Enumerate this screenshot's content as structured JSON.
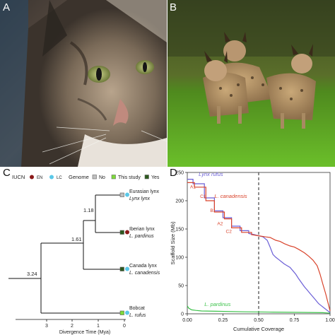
{
  "figure": {
    "panels": [
      "A",
      "B",
      "C",
      "D"
    ]
  },
  "panel_c": {
    "legend": {
      "iucn_label": "IUCN",
      "en_label": "EN",
      "lc_label": "LC",
      "genome_label": "Genome",
      "no_label": "No",
      "this_study_label": "This study",
      "yes_label": "Yes"
    },
    "colors": {
      "en": "#8b1a1a",
      "lc": "#5bc8e8",
      "no": "#bfbfbf",
      "this_study": "#7ddb3a",
      "yes": "#2d5a1e"
    },
    "taxa": [
      {
        "common": "Eurasian lynx",
        "latin": "Lynx lynx",
        "iucn": "lc",
        "genome": "no"
      },
      {
        "common": "Iberian lynx",
        "latin": "L. pardinus",
        "iucn": "en",
        "genome": "yes"
      },
      {
        "common": "Canada lynx",
        "latin": "L. canadensis",
        "iucn": "lc",
        "genome": "yes"
      },
      {
        "common": "Bobcat",
        "latin": "L. rufus",
        "iucn": "lc",
        "genome": "this_study"
      }
    ],
    "node_labels": {
      "root": "3.24",
      "n2": "1.61",
      "n3": "1.18"
    },
    "axis": {
      "ticks": [
        "3",
        "2",
        "1",
        "0"
      ],
      "label": "Divergence Time (Mya)"
    }
  },
  "chart_data": {
    "type": "line",
    "xlabel": "Cumulative Coverage",
    "ylabel": "Scaffold Size (Mb)",
    "xlim": [
      0,
      1
    ],
    "ylim": [
      0,
      250
    ],
    "xticks": [
      "0.00",
      "0.25",
      "0.50",
      "0.75",
      "1.00"
    ],
    "yticks": [
      "0",
      "50",
      "100",
      "150",
      "200",
      "250"
    ],
    "reference_line_x": 0.5,
    "series": [
      {
        "name": "Lynx rufus",
        "color": "#6b5fd6",
        "x": [
          0,
          0.04,
          0.04,
          0.12,
          0.12,
          0.19,
          0.19,
          0.25,
          0.25,
          0.31,
          0.31,
          0.37,
          0.37,
          0.43,
          0.43,
          0.47,
          0.5,
          0.53,
          0.56,
          0.58,
          0.6,
          0.62,
          0.64,
          0.66,
          0.68,
          0.7,
          0.72,
          0.74,
          0.76,
          0.78,
          0.8,
          0.82,
          0.84,
          0.86,
          0.88,
          0.9,
          0.92,
          0.94,
          0.96,
          0.98,
          1.0
        ],
        "y": [
          238,
          238,
          230,
          230,
          205,
          205,
          182,
          182,
          170,
          170,
          155,
          155,
          147,
          147,
          142,
          140,
          138,
          136,
          130,
          118,
          105,
          100,
          96,
          92,
          88,
          85,
          82,
          76,
          70,
          62,
          55,
          48,
          42,
          36,
          30,
          24,
          18,
          14,
          10,
          6,
          2
        ]
      },
      {
        "name": "L. canadensis",
        "color": "#d9432b",
        "x": [
          0,
          0.05,
          0.05,
          0.13,
          0.13,
          0.19,
          0.19,
          0.26,
          0.26,
          0.31,
          0.31,
          0.38,
          0.38,
          0.45,
          0.45,
          0.5,
          0.55,
          0.58,
          0.62,
          0.65,
          0.68,
          0.72,
          0.75,
          0.78,
          0.82,
          0.85,
          0.88,
          0.91,
          0.93,
          0.95,
          0.97,
          0.99,
          1.0
        ],
        "y": [
          232,
          232,
          224,
          224,
          200,
          200,
          180,
          180,
          168,
          168,
          152,
          152,
          144,
          144,
          140,
          138,
          136,
          135,
          130,
          128,
          124,
          120,
          118,
          114,
          108,
          102,
          95,
          85,
          70,
          52,
          35,
          15,
          5
        ]
      },
      {
        "name": "L. pardinus",
        "color": "#3cc24a",
        "x": [
          0,
          0.01,
          0.03,
          0.06,
          0.1,
          0.2,
          0.4,
          0.6,
          0.8,
          0.95,
          0.98,
          1.0
        ],
        "y": [
          14,
          10,
          7,
          6,
          5,
          4.5,
          3.5,
          3,
          2.5,
          2,
          1.5,
          1
        ]
      }
    ],
    "annotations": [
      "A1",
      "C1",
      "B1",
      "A2",
      "C2"
    ]
  }
}
